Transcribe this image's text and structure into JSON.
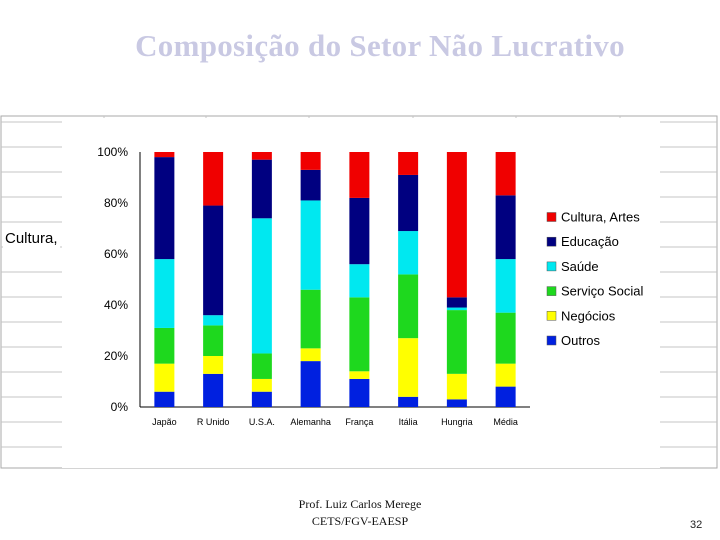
{
  "slide": {
    "title": "Composição do Setor Não Lucrativo",
    "footer_author": "Prof. Luiz Carlos Merege",
    "footer_institution": "CETS/FGV-EAESP",
    "page_number": "32"
  },
  "side_label": "Cultura,",
  "chart_data": {
    "type": "bar",
    "stacked": true,
    "percent": true,
    "categories": [
      "Japão",
      "R Unido",
      "U.S.A.",
      "Alemanha",
      "França",
      "Itália",
      "Hungria",
      "Média"
    ],
    "series": [
      {
        "name": "Outros",
        "color": "#0020e0",
        "values": [
          6,
          13,
          6,
          18,
          11,
          4,
          3,
          8
        ]
      },
      {
        "name": "Negócios",
        "color": "#ffff00",
        "values": [
          11,
          7,
          5,
          5,
          3,
          23,
          10,
          9
        ]
      },
      {
        "name": "Serviço Social",
        "color": "#1ed81e",
        "values": [
          14,
          12,
          10,
          23,
          29,
          25,
          25,
          20
        ]
      },
      {
        "name": "Saúde",
        "color": "#00e8f0",
        "values": [
          27,
          4,
          53,
          35,
          13,
          17,
          1,
          21
        ]
      },
      {
        "name": "Educação",
        "color": "#000080",
        "values": [
          40,
          43,
          23,
          12,
          26,
          22,
          4,
          25
        ]
      },
      {
        "name": "Cultura, Artes",
        "color": "#f00000",
        "values": [
          2,
          21,
          3,
          7,
          18,
          9,
          57,
          17
        ]
      }
    ],
    "ylim": [
      0,
      100
    ],
    "yticks": [
      "0%",
      "20%",
      "40%",
      "60%",
      "80%",
      "100%"
    ],
    "legend_position": "right",
    "grid": false
  }
}
